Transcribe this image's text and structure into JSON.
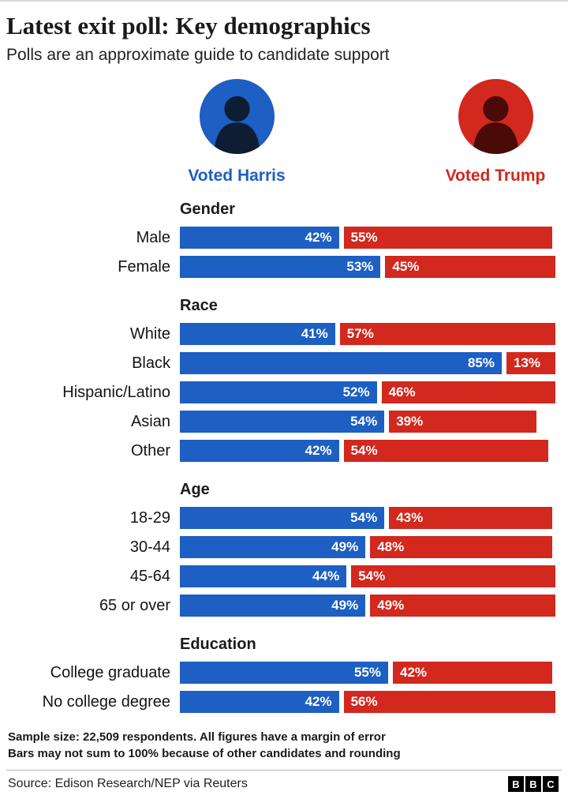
{
  "header": {
    "title": "Latest exit poll: Key demographics",
    "subtitle": "Polls are an approximate guide to candidate support"
  },
  "legend": {
    "harris_label": "Voted Harris",
    "trump_label": "Voted Trump",
    "harris_color": "#1d5fc2",
    "trump_color": "#d2281e"
  },
  "chart_data": {
    "type": "bar",
    "orientation": "horizontal",
    "unit": "%",
    "title": "Latest exit poll: Key demographics",
    "series": [
      "Voted Harris",
      "Voted Trump"
    ],
    "colors": {
      "harris": "#1d5fc2",
      "trump": "#d2281e"
    },
    "value_label_color": "#ffffff",
    "sections": [
      {
        "title": "Gender",
        "rows": [
          {
            "label": "Male",
            "harris": 42,
            "trump": 55
          },
          {
            "label": "Female",
            "harris": 53,
            "trump": 45
          }
        ]
      },
      {
        "title": "Race",
        "rows": [
          {
            "label": "White",
            "harris": 41,
            "trump": 57
          },
          {
            "label": "Black",
            "harris": 85,
            "trump": 13
          },
          {
            "label": "Hispanic/Latino",
            "harris": 52,
            "trump": 46
          },
          {
            "label": "Asian",
            "harris": 54,
            "trump": 39
          },
          {
            "label": "Other",
            "harris": 42,
            "trump": 54
          }
        ]
      },
      {
        "title": "Age",
        "rows": [
          {
            "label": "18-29",
            "harris": 54,
            "trump": 43
          },
          {
            "label": "30-44",
            "harris": 49,
            "trump": 48
          },
          {
            "label": "45-64",
            "harris": 44,
            "trump": 54
          },
          {
            "label": "65 or over",
            "harris": 49,
            "trump": 49
          }
        ]
      },
      {
        "title": "Education",
        "rows": [
          {
            "label": "College graduate",
            "harris": 55,
            "trump": 42
          },
          {
            "label": "No college degree",
            "harris": 42,
            "trump": 56
          }
        ]
      }
    ]
  },
  "footer": {
    "note1": "Sample size: 22,509 respondents. All figures have a margin of error",
    "note2": "Bars may not sum to 100% because of other candidates and rounding"
  },
  "source": {
    "text": "Source: Edison Research/NEP via Reuters",
    "logo_letters": [
      "B",
      "B",
      "C"
    ]
  }
}
